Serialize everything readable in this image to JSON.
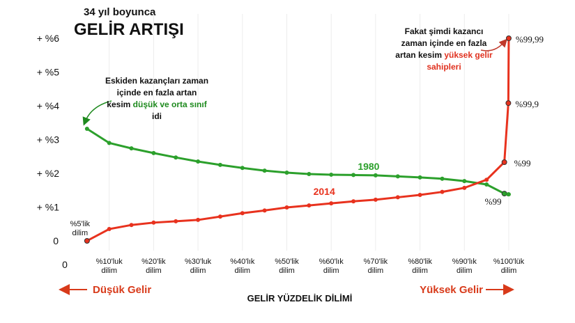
{
  "chart_data": {
    "type": "line",
    "subtitle": "34 yıl boyunca",
    "title": "GELİR ARTIŞI",
    "x_label": "GELİR YÜZDELİK DİLİMİ",
    "low_label": "Düşük Gelir",
    "high_label": "Yüksek Gelir",
    "annotations": [
      {
        "text": "Eskiden kazançları zaman içinde en fazla artan kesim",
        "highlight": "düşük ve orta sınıf",
        "suffix": "idi"
      },
      {
        "text": "Fakat şimdi kazancı zaman içinde en fazla artan kesim",
        "highlight": "yüksek gelir sahipleri"
      }
    ],
    "x": [
      5,
      10,
      15,
      20,
      25,
      30,
      35,
      40,
      45,
      50,
      55,
      60,
      65,
      70,
      75,
      80,
      85,
      90,
      95,
      99,
      99.9,
      99.99
    ],
    "series": [
      {
        "name": "1980",
        "color": "#2ca02c",
        "values": [
          3.32,
          2.9,
          2.74,
          2.6,
          2.47,
          2.35,
          2.25,
          2.16,
          2.08,
          2.02,
          1.98,
          1.96,
          1.95,
          1.94,
          1.91,
          1.88,
          1.84,
          1.77,
          1.67,
          1.4,
          1.38,
          1.38
        ],
        "point_labels": [
          null,
          null,
          null,
          null,
          null,
          null,
          null,
          null,
          null,
          null,
          null,
          null,
          null,
          null,
          null,
          null,
          null,
          null,
          null,
          "%99",
          null,
          null
        ]
      },
      {
        "name": "2014",
        "color": "#e8321e",
        "values": [
          0,
          0.35,
          0.47,
          0.54,
          0.58,
          0.62,
          0.72,
          0.82,
          0.9,
          0.99,
          1.05,
          1.11,
          1.17,
          1.22,
          1.29,
          1.36,
          1.45,
          1.57,
          1.81,
          2.33,
          4.08,
          6.0
        ],
        "point_labels": [
          "%5'lik dilim",
          null,
          null,
          null,
          null,
          null,
          null,
          null,
          null,
          null,
          null,
          null,
          null,
          null,
          null,
          null,
          null,
          null,
          null,
          "%99",
          "%99,9",
          "%99,99"
        ]
      }
    ],
    "xlim": [
      0,
      100
    ],
    "xticks": [
      0,
      {
        "value": 10,
        "label": "%10'luk dilim"
      },
      {
        "value": 20,
        "label": "%20'lik dilim"
      },
      {
        "value": 30,
        "label": "%30'luk dilim"
      },
      {
        "value": 40,
        "label": "%40'lık dilim"
      },
      {
        "value": 50,
        "label": "%50'lik dilim"
      },
      {
        "value": 60,
        "label": "%60'lık dilim"
      },
      {
        "value": 70,
        "label": "%70'lik dilim"
      },
      {
        "value": 80,
        "label": "%80'lik dilim"
      },
      {
        "value": 90,
        "label": "%90'lık dilim"
      },
      {
        "value": 100,
        "label": "%100'lük dilim"
      }
    ],
    "ylim": [
      0,
      6
    ],
    "yticks": [
      0,
      {
        "value": 1,
        "label": "+ %1"
      },
      {
        "value": 2,
        "label": "+ %2"
      },
      {
        "value": 3,
        "label": "+ %3"
      },
      {
        "value": 4,
        "label": "+ %4"
      },
      {
        "value": 5,
        "label": "+ %5"
      },
      {
        "value": 6,
        "label": "+ %6"
      }
    ],
    "grid": true
  }
}
